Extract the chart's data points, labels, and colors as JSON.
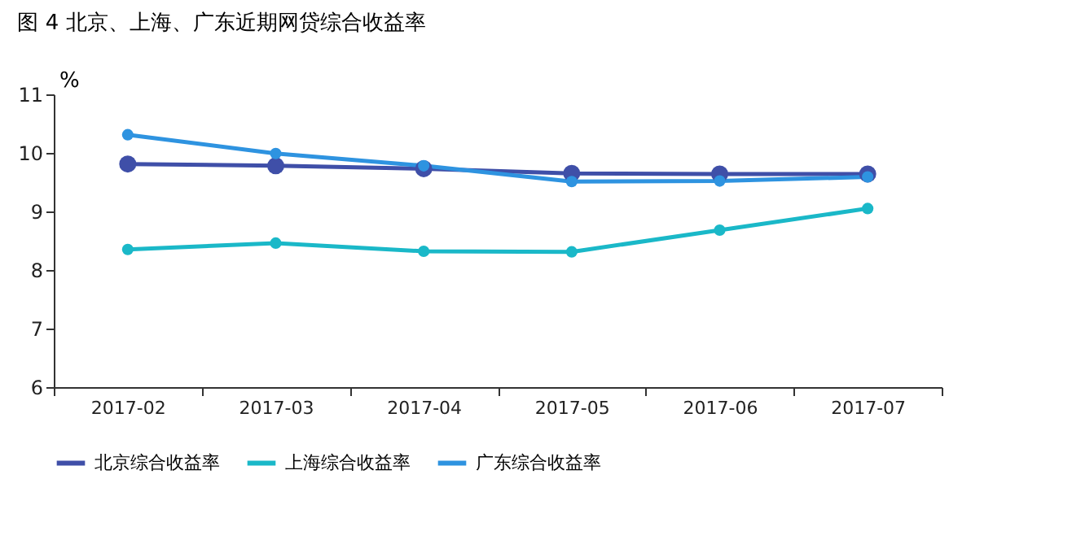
{
  "chart_data": {
    "type": "line",
    "title": "图 4 北京、上海、广东近期网贷综合收益率",
    "ylabel": "%",
    "categories": [
      "2017-02",
      "2017-03",
      "2017-04",
      "2017-05",
      "2017-06",
      "2017-07"
    ],
    "series": [
      {
        "name": "北京综合收益率",
        "color": "#3f4fa8",
        "values": [
          9.81,
          9.78,
          9.73,
          9.65,
          9.64,
          9.64
        ]
      },
      {
        "name": "上海综合收益率",
        "color": "#1ab8c8",
        "values": [
          8.35,
          8.46,
          8.32,
          8.31,
          8.68,
          9.05
        ]
      },
      {
        "name": "广东综合收益率",
        "color": "#2e93e0",
        "values": [
          10.31,
          9.99,
          9.78,
          9.51,
          9.52,
          9.59
        ]
      }
    ],
    "ylim": [
      6,
      11
    ],
    "yticks": [
      6,
      7,
      8,
      9,
      10,
      11
    ],
    "grid": false,
    "legend": "bottom",
    "marker": "circle",
    "line_style": "solid"
  }
}
